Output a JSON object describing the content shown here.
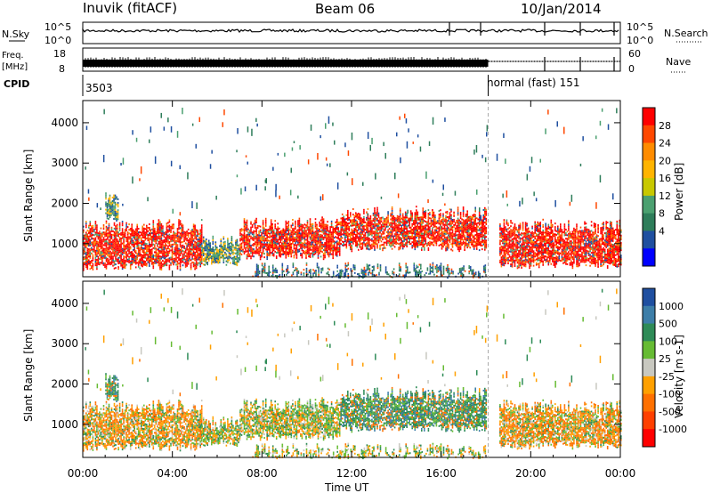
{
  "header": {
    "station": "Inuvik (fitACF)",
    "beam": "Beam 06",
    "date": "10/Jan/2014"
  },
  "noise_panel": {
    "left_label": "N.Sky",
    "right_label": "N.Search",
    "left_ticks": [
      "10^5",
      "10^0"
    ],
    "right_ticks": [
      "10^5",
      "10^0"
    ]
  },
  "freq_panel": {
    "left_label_line1": "Freq.",
    "left_label_line2": "[MHz]",
    "right_label": "Nave",
    "left_ticks": [
      "18",
      "8"
    ],
    "right_ticks": [
      "60",
      "0"
    ]
  },
  "cpid_panel": {
    "label": "CPID",
    "mode1": "3503",
    "mode2": "normal (fast) 151",
    "switch_time_hours": 18.1
  },
  "chart_data": [
    {
      "type": "heatmap",
      "name": "power",
      "ylabel": "Slant Range [km]",
      "yticks": [
        1000,
        2000,
        3000,
        4000
      ],
      "ylim": [
        180,
        4550
      ],
      "xlim_hours": [
        0,
        24
      ],
      "colorbar": {
        "label": "Power [dB]",
        "ticks": [
          "28",
          "24",
          "20",
          "16",
          "12",
          "8",
          "4"
        ],
        "colors": [
          "#ff0000",
          "#ff4800",
          "#ff8c00",
          "#ffb400",
          "#c8c800",
          "#4ba070",
          "#2e7d5a",
          "#1f4fa0",
          "#0000ff"
        ]
      },
      "echo_bands": [
        {
          "start_h": 0,
          "end_h": 5.3,
          "low_km": 380,
          "high_km": 1600,
          "level": "high"
        },
        {
          "start_h": 1.0,
          "end_h": 1.6,
          "low_km": 1600,
          "high_km": 2350,
          "level": "mid"
        },
        {
          "start_h": 5.3,
          "end_h": 7.0,
          "low_km": 500,
          "high_km": 1200,
          "level": "mid"
        },
        {
          "start_h": 7.0,
          "end_h": 11.5,
          "low_km": 650,
          "high_km": 1650,
          "level": "high"
        },
        {
          "start_h": 11.5,
          "end_h": 18.0,
          "low_km": 850,
          "high_km": 1900,
          "level": "high"
        },
        {
          "start_h": 18.6,
          "end_h": 24,
          "low_km": 430,
          "high_km": 1600,
          "level": "high"
        },
        {
          "start_h": 7.5,
          "end_h": 18.0,
          "low_km": 190,
          "high_km": 520,
          "level": "low"
        }
      ]
    },
    {
      "type": "heatmap",
      "name": "velocity",
      "ylabel": "Slant Range [km]",
      "yticks": [
        1000,
        2000,
        3000,
        4000
      ],
      "ylim": [
        180,
        4550
      ],
      "xlim_hours": [
        0,
        24
      ],
      "colorbar": {
        "label": "Velocity [m s-1]",
        "ticks": [
          "1000",
          "500",
          "100",
          "25",
          "-25",
          "-100",
          "-500",
          "-1000"
        ],
        "colors": [
          "#1f4fa0",
          "#3d7ea8",
          "#2e8b57",
          "#66bb33",
          "#c8c8c0",
          "#ffa000",
          "#ff7000",
          "#ff4000",
          "#ff0000"
        ]
      },
      "echo_bands": [
        {
          "start_h": 0,
          "end_h": 5.3,
          "low_km": 380,
          "high_km": 1600,
          "level": "neg"
        },
        {
          "start_h": 1.0,
          "end_h": 1.6,
          "low_km": 1600,
          "high_km": 2350,
          "level": "pos"
        },
        {
          "start_h": 5.3,
          "end_h": 7.0,
          "low_km": 500,
          "high_km": 1200,
          "level": "mix"
        },
        {
          "start_h": 7.0,
          "end_h": 11.5,
          "low_km": 650,
          "high_km": 1650,
          "level": "mix"
        },
        {
          "start_h": 11.5,
          "end_h": 18.0,
          "low_km": 850,
          "high_km": 1900,
          "level": "pos"
        },
        {
          "start_h": 18.6,
          "end_h": 24,
          "low_km": 430,
          "high_km": 1600,
          "level": "neg"
        },
        {
          "start_h": 7.5,
          "end_h": 18.0,
          "low_km": 190,
          "high_km": 520,
          "level": "mix"
        }
      ]
    }
  ],
  "x_axis": {
    "ticks": [
      "00:00",
      "04:00",
      "08:00",
      "12:00",
      "16:00",
      "20:00",
      "00:00"
    ],
    "label": "Time UT"
  }
}
